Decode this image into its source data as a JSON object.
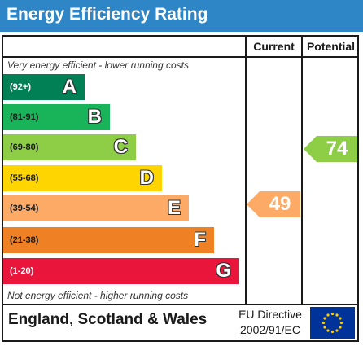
{
  "header": {
    "title": "Energy Efficiency Rating"
  },
  "columns": {
    "current": "Current",
    "potential": "Potential"
  },
  "notes": {
    "top": "Very energy efficient - lower running costs",
    "bottom": "Not energy efficient - higher running costs"
  },
  "bands": [
    {
      "range": "(92+)",
      "letter": "A",
      "color": "#008054"
    },
    {
      "range": "(81-91)",
      "letter": "B",
      "color": "#19b459"
    },
    {
      "range": "(69-80)",
      "letter": "C",
      "color": "#8dce46"
    },
    {
      "range": "(55-68)",
      "letter": "D",
      "color": "#ffd500"
    },
    {
      "range": "(39-54)",
      "letter": "E",
      "color": "#fcaa65"
    },
    {
      "range": "(21-38)",
      "letter": "F",
      "color": "#ef8023"
    },
    {
      "range": "(1-20)",
      "letter": "G",
      "color": "#e9153b"
    }
  ],
  "current_rating": {
    "value": "49",
    "band": "E",
    "color": "#fcaa65"
  },
  "potential_rating": {
    "value": "74",
    "band": "C",
    "color": "#8dce46"
  },
  "footer": {
    "country": "England, Scotland & Wales",
    "directive_line1": "EU Directive",
    "directive_line2": "2002/91/EC",
    "flag_colors": {
      "field": "#003399",
      "stars": "#ffcc00"
    }
  }
}
